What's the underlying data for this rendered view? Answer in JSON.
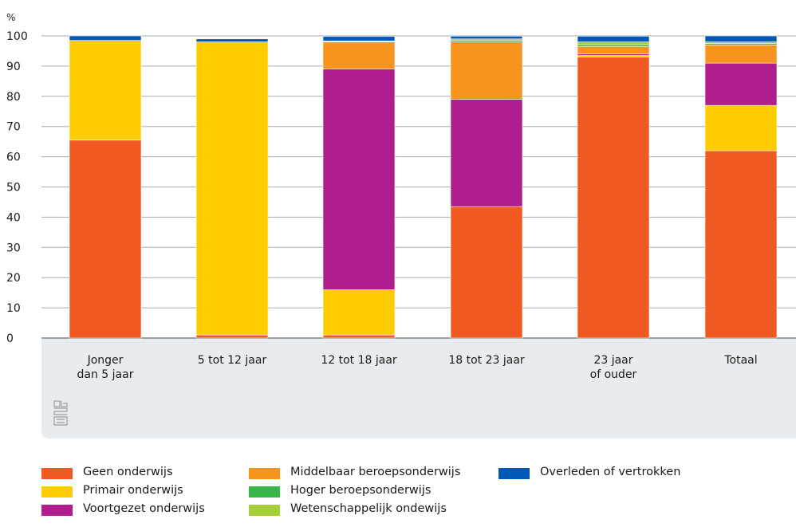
{
  "chart_data": {
    "type": "bar",
    "stacked": true,
    "ylabel": "%",
    "ylim": [
      0,
      100
    ],
    "yticks": [
      0,
      10,
      20,
      30,
      40,
      50,
      60,
      70,
      80,
      90,
      100
    ],
    "grid": true,
    "legend_position": "bottom",
    "categories": [
      [
        "Jonger",
        "dan 5 jaar"
      ],
      [
        "5 tot 12 jaar"
      ],
      [
        "12 tot 18 jaar"
      ],
      [
        "18 tot 23 jaar"
      ],
      [
        "23 jaar",
        "of ouder"
      ],
      [
        "Totaal"
      ]
    ],
    "series": [
      {
        "name": "Geen onderwijs",
        "color": "#f05a22",
        "values": [
          65.5,
          1.0,
          1.0,
          43.5,
          93.0,
          62.0
        ]
      },
      {
        "name": "Primair onderwijs",
        "color": "#ffcc00",
        "values": [
          33.0,
          97.0,
          15.0,
          0,
          0.5,
          15.0
        ]
      },
      {
        "name": "Voortgezet onderwijs",
        "color": "#af1e8c",
        "values": [
          0,
          0,
          73.0,
          35.5,
          0.5,
          14.0
        ]
      },
      {
        "name": "Middelbaar beroepsonderwijs",
        "color": "#f7941d",
        "values": [
          0,
          0,
          9.0,
          19.0,
          2.5,
          6.0
        ]
      },
      {
        "name": "Hoger beroepsonderwijs",
        "color": "#3ab54a",
        "values": [
          0,
          0,
          0.2,
          0.5,
          0.6,
          0.5
        ]
      },
      {
        "name": "Wetenschappelijk ondewijs",
        "color": "#a6ce39",
        "values": [
          0,
          0,
          0.1,
          0.5,
          0.9,
          0.5
        ]
      },
      {
        "name": "Overleden of vertrokken",
        "color": "#0058b8",
        "values": [
          1.5,
          1.0,
          1.5,
          0.9,
          1.9,
          2.0
        ]
      }
    ]
  },
  "legend_columns": [
    [
      "Geen onderwijs",
      "Primair onderwijs",
      "Voortgezet onderwijs"
    ],
    [
      "Middelbaar beroepsonderwijs",
      "Hoger beroepsonderwijs",
      "Wetenschappelijk ondewijs"
    ],
    [
      "Overleden of vertrokken"
    ]
  ],
  "logo_icon": "cbs-logo-icon"
}
